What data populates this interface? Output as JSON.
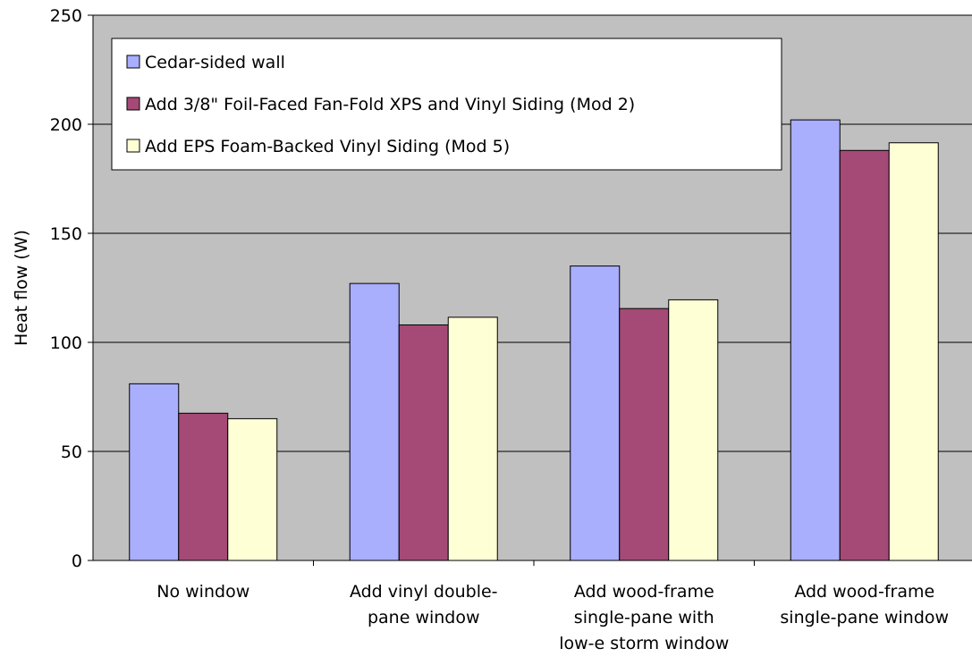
{
  "chart_data": {
    "type": "bar",
    "title": "",
    "xlabel": "",
    "ylabel": "Heat flow (W)",
    "ylim": [
      0,
      250
    ],
    "yticks": [
      0,
      50,
      100,
      150,
      200,
      250
    ],
    "grid": true,
    "legend_position": "top-left",
    "categories": [
      [
        "No window"
      ],
      [
        "Add vinyl double-",
        "pane window"
      ],
      [
        "Add wood-frame",
        "single-pane with",
        "low-e storm window"
      ],
      [
        "Add wood-frame",
        "single-pane window"
      ]
    ],
    "series": [
      {
        "name": "Cedar-sided wall",
        "color": "#a9aefd",
        "values": [
          81,
          127,
          135,
          202
        ]
      },
      {
        "name": "Add 3/8\" Foil-Faced Fan-Fold XPS and Vinyl Siding (Mod 2)",
        "color": "#a54a77",
        "values": [
          67.5,
          108,
          115.5,
          188
        ]
      },
      {
        "name": "Add EPS Foam-Backed Vinyl Siding (Mod 5)",
        "color": "#ffffd6",
        "values": [
          65,
          111.5,
          119.5,
          191.5
        ]
      }
    ],
    "plot_background": "#c0c0c0"
  }
}
